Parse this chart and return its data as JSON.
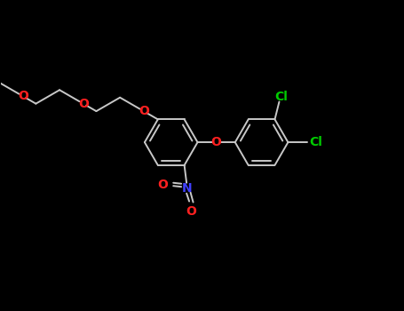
{
  "background_color": "#000000",
  "bond_color": "#c8c8c8",
  "bond_width": 1.4,
  "O_color": "#ff2020",
  "N_color": "#4040ff",
  "Cl_color": "#00cc00",
  "figsize": [
    4.55,
    3.5
  ],
  "dpi": 100,
  "xlim": [
    0,
    9.1
  ],
  "ylim": [
    0,
    7.0
  ]
}
